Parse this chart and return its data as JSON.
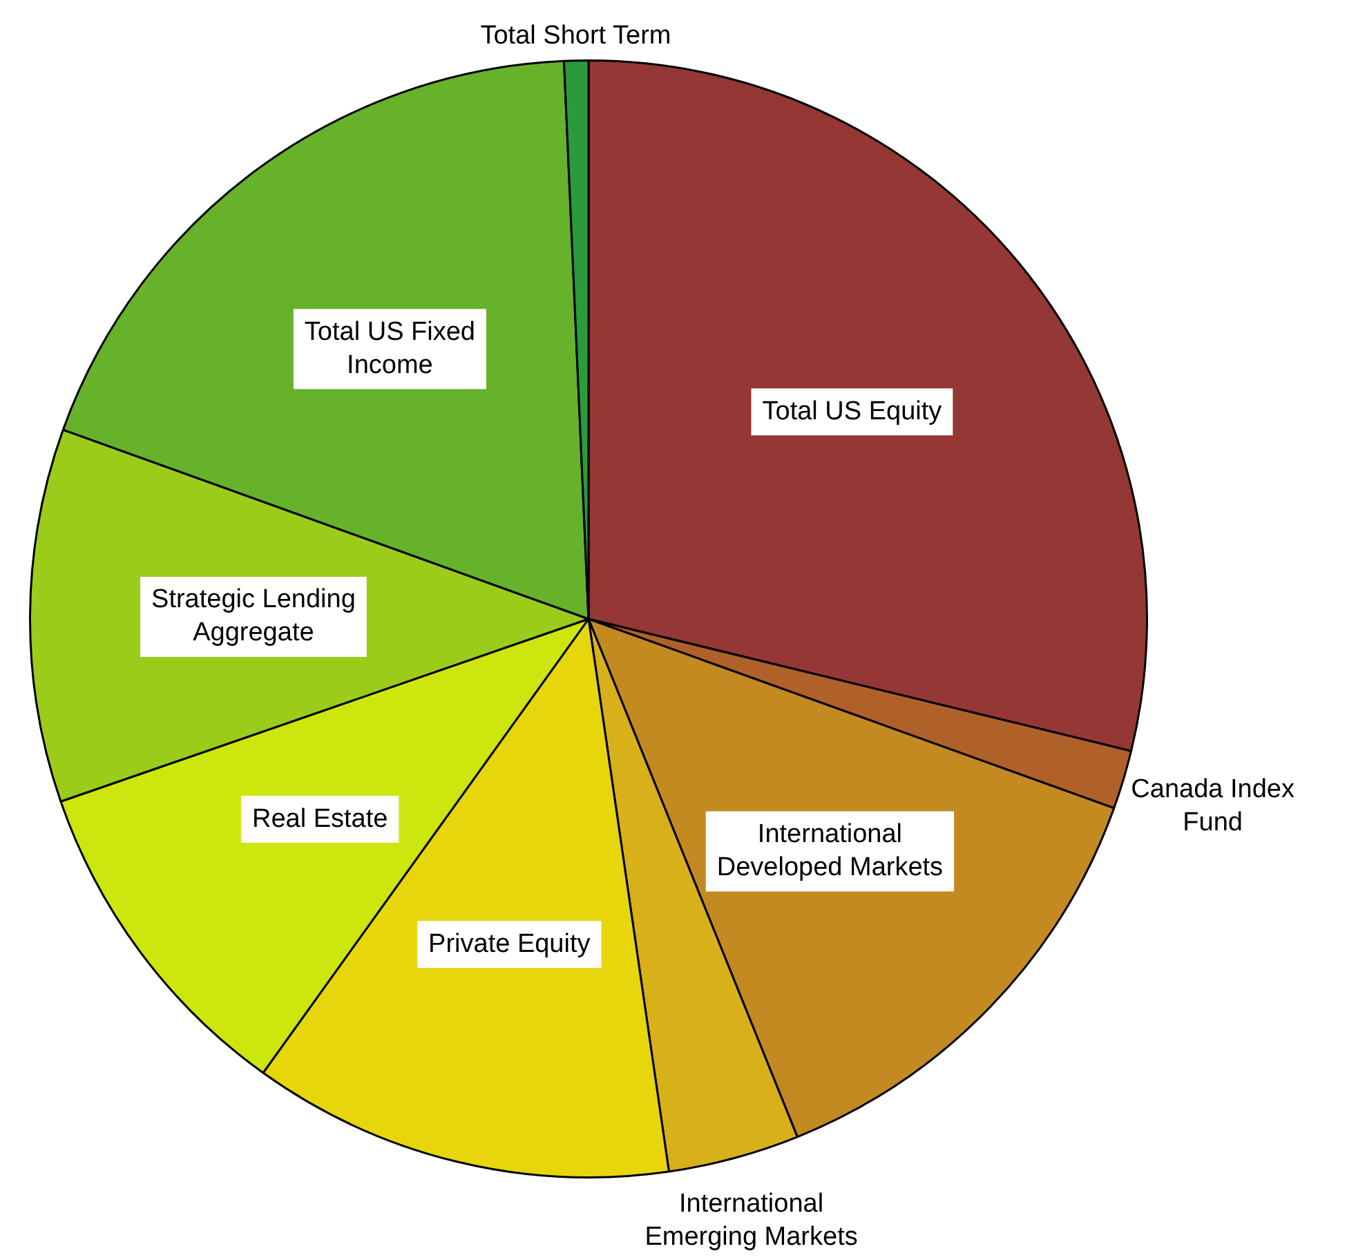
{
  "chart_data": {
    "type": "pie",
    "categories": [
      "Total US Equity",
      "Canada Index Fund",
      "International Developed Markets",
      "International Emerging Markets",
      "Private Equity",
      "Real Estate",
      "Strategic Lending Aggregate",
      "Total US Fixed Income",
      "Total Short Term"
    ],
    "values": [
      28.8,
      1.7,
      13.4,
      3.8,
      12.2,
      9.8,
      10.8,
      18.8,
      0.7
    ],
    "colors": [
      "#953735",
      "#b0612a",
      "#c38a22",
      "#d8b01a",
      "#e8d60d",
      "#cce60e",
      "#9ccc1a",
      "#66b22a",
      "#2a9a3a"
    ],
    "legend": false
  }
}
